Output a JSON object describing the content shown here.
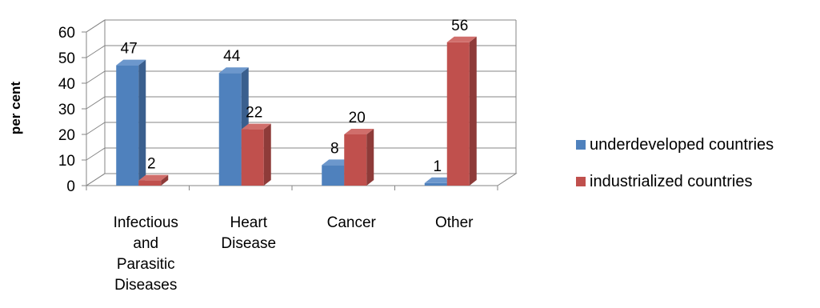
{
  "chart_data": {
    "type": "bar",
    "title": "",
    "xlabel": "",
    "ylabel": "per cent",
    "ylim": [
      0,
      60
    ],
    "yticks": [
      0,
      10,
      20,
      30,
      40,
      50,
      60
    ],
    "categories": [
      [
        "Infectious",
        "and",
        "Parasitic",
        "Diseases"
      ],
      [
        "Heart",
        "Disease"
      ],
      [
        "Cancer"
      ],
      [
        "Other"
      ]
    ],
    "series": [
      {
        "name": "underdeveloped countries",
        "values": [
          47,
          44,
          8,
          1
        ],
        "color": "#4F81BD",
        "side": "#3A5F8E",
        "top": "#6C97CC"
      },
      {
        "name": "industrialized countries",
        "values": [
          2,
          22,
          20,
          56
        ],
        "color": "#C0504D",
        "side": "#8E3B39",
        "top": "#D06E6B"
      }
    ],
    "grid": true,
    "legend_position": "right",
    "three_d": true
  }
}
